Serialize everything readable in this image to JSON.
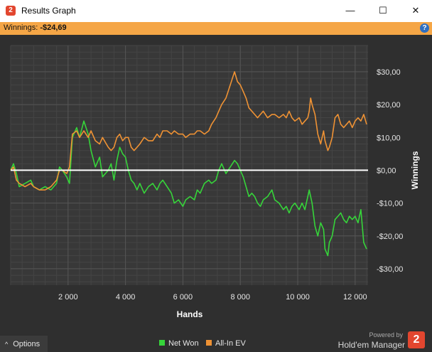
{
  "window": {
    "title": "Results Graph",
    "app_icon": "holdem-manager-2-icon",
    "controls": {
      "minimize": "—",
      "maximize": "☐",
      "close": "✕"
    }
  },
  "info_bar": {
    "label": "Winnings:",
    "value": "-$24,69",
    "help_icon": "?"
  },
  "footer": {
    "options_label": "Options",
    "options_icon": "chevron-up-icon",
    "powered_by": "Powered by",
    "brand": "Hold'em Manager",
    "brand_logo": "2"
  },
  "colors": {
    "background": "#2f2f2f",
    "plot_background": "#383838",
    "net_won": "#36d43a",
    "all_in_ev": "#ef9234",
    "zero_line": "#ffffff",
    "accent": "#f5a646"
  },
  "chart_data": {
    "type": "line",
    "title": "",
    "xlabel": "Hands",
    "ylabel": "Winnings",
    "xlim": [
      0,
      12450
    ],
    "ylim": [
      -35,
      38
    ],
    "x_ticks": [
      2000,
      4000,
      6000,
      8000,
      10000,
      12000
    ],
    "x_tick_labels": [
      "2 000",
      "4 000",
      "6 000",
      "8 000",
      "10 000",
      "12 000"
    ],
    "y_ticks": [
      30,
      20,
      10,
      0,
      -10,
      -20,
      -30
    ],
    "y_tick_labels": [
      "$30,00",
      "$20,00",
      "$10,00",
      "$0,00",
      "-$10,00",
      "-$20,00",
      "-$30,00"
    ],
    "grid": true,
    "legend_position": "bottom-center",
    "series": [
      {
        "name": "Net Won",
        "color": "#36d43a",
        "points": [
          [
            0,
            0
          ],
          [
            100,
            2
          ],
          [
            200,
            -1
          ],
          [
            300,
            -5
          ],
          [
            500,
            -4
          ],
          [
            700,
            -3
          ],
          [
            800,
            -5
          ],
          [
            1000,
            -6
          ],
          [
            1200,
            -5
          ],
          [
            1400,
            -6
          ],
          [
            1600,
            -4
          ],
          [
            1700,
            1
          ],
          [
            1800,
            0
          ],
          [
            1950,
            -2
          ],
          [
            2050,
            -4
          ],
          [
            2150,
            10
          ],
          [
            2300,
            13
          ],
          [
            2400,
            10
          ],
          [
            2550,
            15
          ],
          [
            2700,
            11
          ],
          [
            2800,
            6
          ],
          [
            2950,
            1
          ],
          [
            3100,
            4
          ],
          [
            3200,
            -2
          ],
          [
            3400,
            0
          ],
          [
            3500,
            2
          ],
          [
            3600,
            -3
          ],
          [
            3700,
            3
          ],
          [
            3800,
            7
          ],
          [
            3900,
            5
          ],
          [
            4000,
            4
          ],
          [
            4100,
            0
          ],
          [
            4200,
            -3
          ],
          [
            4300,
            -4
          ],
          [
            4400,
            -6
          ],
          [
            4500,
            -4
          ],
          [
            4650,
            -7
          ],
          [
            4800,
            -5
          ],
          [
            4950,
            -4
          ],
          [
            5100,
            -6
          ],
          [
            5200,
            -4
          ],
          [
            5300,
            -3
          ],
          [
            5450,
            -5
          ],
          [
            5600,
            -7
          ],
          [
            5700,
            -10
          ],
          [
            5850,
            -9
          ],
          [
            6000,
            -11
          ],
          [
            6100,
            -9
          ],
          [
            6250,
            -8
          ],
          [
            6400,
            -9
          ],
          [
            6500,
            -6
          ],
          [
            6600,
            -7
          ],
          [
            6750,
            -4
          ],
          [
            6900,
            -3
          ],
          [
            7000,
            -4
          ],
          [
            7150,
            -3
          ],
          [
            7250,
            0
          ],
          [
            7350,
            2
          ],
          [
            7500,
            -1
          ],
          [
            7650,
            1
          ],
          [
            7800,
            3
          ],
          [
            7900,
            2
          ],
          [
            8000,
            0
          ],
          [
            8100,
            -2
          ],
          [
            8200,
            -5
          ],
          [
            8300,
            -8
          ],
          [
            8400,
            -7
          ],
          [
            8500,
            -8
          ],
          [
            8600,
            -10
          ],
          [
            8700,
            -11
          ],
          [
            8800,
            -9
          ],
          [
            8950,
            -8
          ],
          [
            9100,
            -6
          ],
          [
            9200,
            -9
          ],
          [
            9350,
            -10
          ],
          [
            9500,
            -12
          ],
          [
            9600,
            -11
          ],
          [
            9700,
            -13
          ],
          [
            9800,
            -11
          ],
          [
            9900,
            -10
          ],
          [
            10050,
            -12
          ],
          [
            10150,
            -10
          ],
          [
            10250,
            -12
          ],
          [
            10350,
            -8
          ],
          [
            10400,
            -6
          ],
          [
            10450,
            -8
          ],
          [
            10500,
            -10
          ],
          [
            10600,
            -17
          ],
          [
            10700,
            -20
          ],
          [
            10800,
            -16
          ],
          [
            10900,
            -18
          ],
          [
            10950,
            -24
          ],
          [
            11050,
            -26
          ],
          [
            11100,
            -22
          ],
          [
            11200,
            -20
          ],
          [
            11300,
            -15
          ],
          [
            11400,
            -14
          ],
          [
            11500,
            -13
          ],
          [
            11600,
            -15
          ],
          [
            11700,
            -16
          ],
          [
            11800,
            -14
          ],
          [
            11900,
            -15
          ],
          [
            12000,
            -14
          ],
          [
            12100,
            -16
          ],
          [
            12200,
            -12
          ],
          [
            12300,
            -22
          ],
          [
            12400,
            -24
          ]
        ]
      },
      {
        "name": "All-In EV",
        "color": "#ef9234",
        "points": [
          [
            0,
            0
          ],
          [
            100,
            1
          ],
          [
            200,
            -3
          ],
          [
            300,
            -4
          ],
          [
            500,
            -5
          ],
          [
            700,
            -4
          ],
          [
            800,
            -5
          ],
          [
            1000,
            -6
          ],
          [
            1200,
            -6
          ],
          [
            1400,
            -5
          ],
          [
            1600,
            -3
          ],
          [
            1700,
            0
          ],
          [
            1800,
            0
          ],
          [
            1950,
            -1
          ],
          [
            2050,
            1
          ],
          [
            2150,
            11
          ],
          [
            2300,
            12
          ],
          [
            2400,
            10
          ],
          [
            2550,
            12
          ],
          [
            2700,
            10
          ],
          [
            2800,
            12
          ],
          [
            2950,
            9
          ],
          [
            3100,
            8
          ],
          [
            3200,
            10
          ],
          [
            3400,
            7
          ],
          [
            3500,
            6
          ],
          [
            3600,
            7
          ],
          [
            3700,
            10
          ],
          [
            3800,
            11
          ],
          [
            3900,
            9
          ],
          [
            4000,
            10
          ],
          [
            4100,
            10
          ],
          [
            4200,
            7
          ],
          [
            4300,
            6
          ],
          [
            4400,
            7
          ],
          [
            4500,
            8
          ],
          [
            4650,
            10
          ],
          [
            4800,
            9
          ],
          [
            4950,
            9
          ],
          [
            5100,
            11
          ],
          [
            5200,
            10
          ],
          [
            5300,
            12
          ],
          [
            5450,
            12
          ],
          [
            5600,
            11
          ],
          [
            5700,
            12
          ],
          [
            5850,
            11
          ],
          [
            6000,
            11
          ],
          [
            6100,
            10
          ],
          [
            6250,
            11
          ],
          [
            6400,
            11
          ],
          [
            6500,
            12
          ],
          [
            6600,
            12
          ],
          [
            6750,
            11
          ],
          [
            6900,
            12
          ],
          [
            7000,
            14
          ],
          [
            7150,
            16
          ],
          [
            7250,
            18
          ],
          [
            7350,
            20
          ],
          [
            7500,
            22
          ],
          [
            7650,
            26
          ],
          [
            7800,
            30
          ],
          [
            7900,
            27
          ],
          [
            8000,
            26
          ],
          [
            8100,
            24
          ],
          [
            8200,
            22
          ],
          [
            8300,
            19
          ],
          [
            8400,
            18
          ],
          [
            8500,
            17
          ],
          [
            8600,
            16
          ],
          [
            8700,
            17
          ],
          [
            8800,
            18
          ],
          [
            8950,
            16
          ],
          [
            9100,
            17
          ],
          [
            9200,
            17
          ],
          [
            9350,
            16
          ],
          [
            9500,
            17
          ],
          [
            9600,
            16
          ],
          [
            9700,
            18
          ],
          [
            9800,
            16
          ],
          [
            9900,
            15
          ],
          [
            10050,
            16
          ],
          [
            10150,
            14
          ],
          [
            10250,
            15
          ],
          [
            10350,
            16
          ],
          [
            10400,
            18
          ],
          [
            10450,
            22
          ],
          [
            10500,
            20
          ],
          [
            10600,
            17
          ],
          [
            10700,
            11
          ],
          [
            10800,
            8
          ],
          [
            10900,
            12
          ],
          [
            10950,
            9
          ],
          [
            11050,
            6
          ],
          [
            11100,
            7
          ],
          [
            11200,
            10
          ],
          [
            11300,
            16
          ],
          [
            11400,
            17
          ],
          [
            11500,
            14
          ],
          [
            11600,
            13
          ],
          [
            11700,
            14
          ],
          [
            11800,
            15
          ],
          [
            11900,
            13
          ],
          [
            12000,
            15
          ],
          [
            12100,
            16
          ],
          [
            12200,
            15
          ],
          [
            12300,
            17
          ],
          [
            12400,
            14
          ]
        ]
      }
    ]
  }
}
